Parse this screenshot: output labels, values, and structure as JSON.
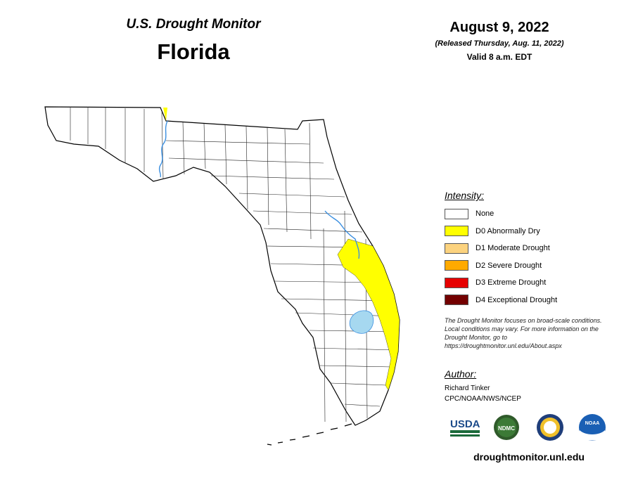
{
  "header": {
    "subtitle": "U.S. Drought Monitor",
    "state": "Florida",
    "date": "August 9, 2022",
    "released": "(Released Thursday, Aug. 11, 2022)",
    "valid": "Valid 8 a.m. EDT"
  },
  "legend": {
    "title": "Intensity:",
    "items": [
      {
        "label": "None",
        "color": "#ffffff"
      },
      {
        "label": "D0 Abnormally Dry",
        "color": "#ffff00"
      },
      {
        "label": "D1 Moderate Drought",
        "color": "#fcd37f"
      },
      {
        "label": "D2 Severe Drought",
        "color": "#ffaa00"
      },
      {
        "label": "D3 Extreme Drought",
        "color": "#e60000"
      },
      {
        "label": "D4 Exceptional Drought",
        "color": "#730000"
      }
    ]
  },
  "note": "The Drought Monitor focuses on broad-scale conditions. Local conditions may vary. For more information on the Drought Monitor, go to https://droughtmonitor.unl.edu/About.aspx",
  "author": {
    "title": "Author:",
    "name": "Richard Tinker",
    "org": "CPC/NOAA/NWS/NCEP"
  },
  "logos": {
    "usda": "USDA",
    "ndmc": "NDMC",
    "noaa": "NOAA"
  },
  "url": "droughtmonitor.unl.edu",
  "colors": {
    "d0": "#ffff00",
    "water": "#a6d8f0",
    "river": "#3b8fe0"
  }
}
